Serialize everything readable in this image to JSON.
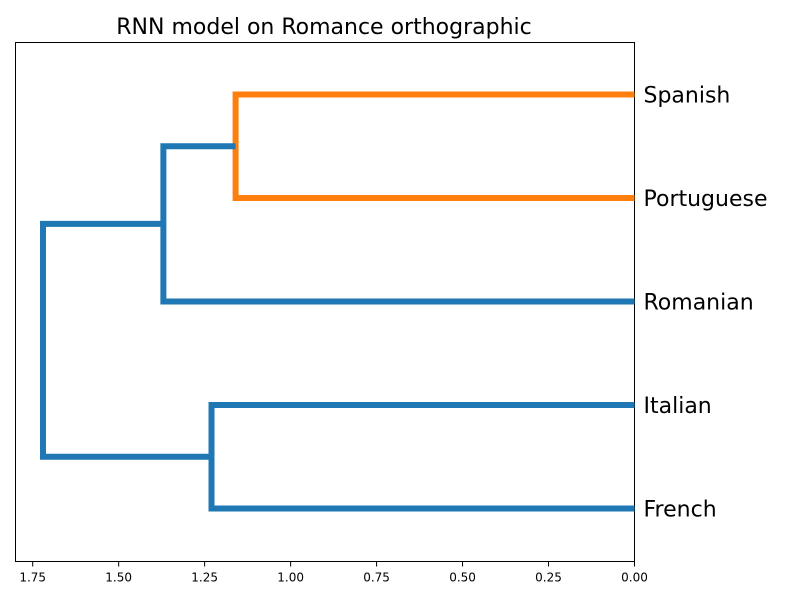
{
  "chart_data": {
    "type": "dendrogram",
    "orientation": "right",
    "title": "RNN model on Romance orthographic",
    "xlabel": "",
    "ylabel": "",
    "xlim": [
      1.8,
      0.0
    ],
    "x_ticks": [
      {
        "value": 1.75,
        "label": "1.75"
      },
      {
        "value": 1.5,
        "label": "1.50"
      },
      {
        "value": 1.25,
        "label": "1.25"
      },
      {
        "value": 1.0,
        "label": "1.00"
      },
      {
        "value": 0.75,
        "label": "0.75"
      },
      {
        "value": 0.5,
        "label": "0.50"
      },
      {
        "value": 0.25,
        "label": "0.25"
      },
      {
        "value": 0.0,
        "label": "0.00"
      }
    ],
    "leaves": [
      "Spanish",
      "Portuguese",
      "Romanian",
      "Italian",
      "French"
    ],
    "merges": [
      {
        "id": "c1",
        "children": [
          "Spanish",
          "Portuguese"
        ],
        "distance": 1.16,
        "color": "#ff7f0e"
      },
      {
        "id": "c2",
        "children": [
          "c1",
          "Romanian"
        ],
        "distance": 1.37,
        "color": "#1f77b4"
      },
      {
        "id": "c3",
        "children": [
          "Italian",
          "French"
        ],
        "distance": 1.23,
        "color": "#1f77b4"
      },
      {
        "id": "c4",
        "children": [
          "c2",
          "c3"
        ],
        "distance": 1.72,
        "color": "#1f77b4"
      }
    ],
    "grid": false,
    "legend": "none"
  }
}
